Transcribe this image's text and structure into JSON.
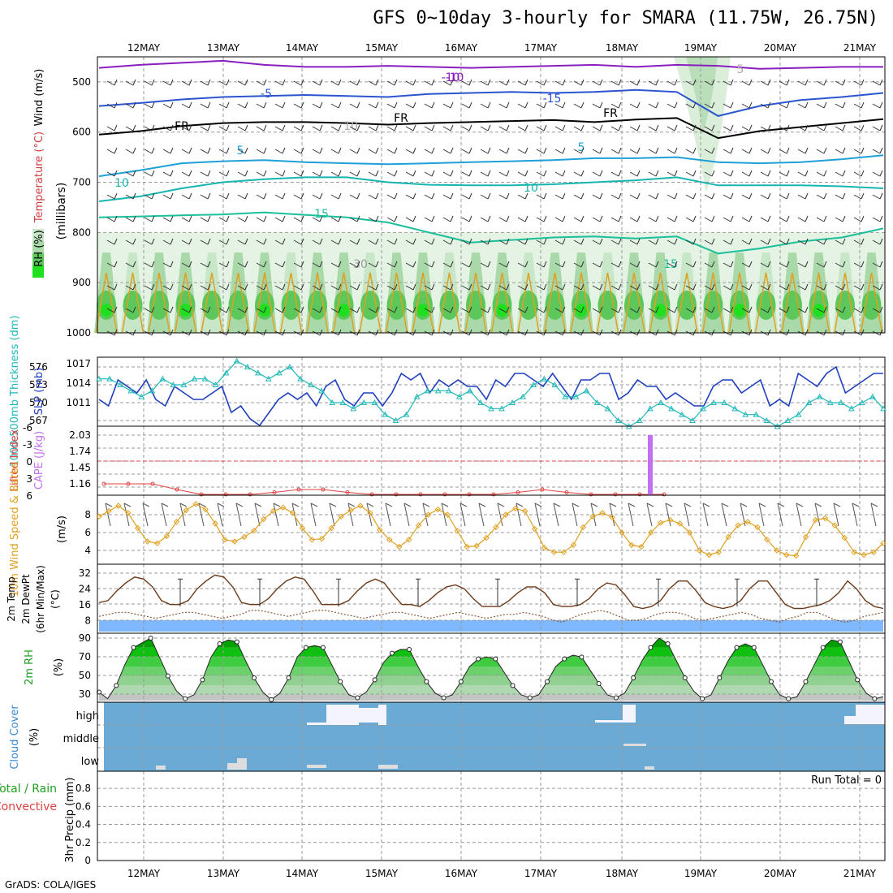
{
  "title": "GFS 0~10day 3-hourly for SMARA (11.75W, 26.75N)",
  "footer": "GrADS: COLA/IGES",
  "chart_data": {
    "type": "meteogram",
    "dates": [
      "12MAY",
      "13MAY",
      "14MAY",
      "15MAY",
      "16MAY",
      "17MAY",
      "18MAY",
      "19MAY",
      "20MAY",
      "21MAY"
    ],
    "panels": [
      {
        "id": "upper-air",
        "ylabels": [
          "Wind (m/s)",
          "Temperature (°C)",
          "RH (%)",
          "(millibars)"
        ],
        "yticks": [
          500,
          600,
          700,
          800,
          900,
          1000
        ],
        "ylim": [
          450,
          1000
        ],
        "contour_labels": [
          "-10",
          "-5",
          "FR",
          "5",
          "10",
          "15",
          "-15",
          "-10",
          "FR",
          "FR",
          "5",
          "10",
          "15",
          "30",
          "10",
          "5"
        ],
        "isotherms": [
          {
            "label": "-10",
            "color": "#8a1fbf",
            "p": [
              472,
              466,
              462,
              458,
              466,
              470,
              470,
              468,
              470,
              472,
              470,
              468,
              466,
              470,
              466,
              468,
              474,
              472,
              470,
              470
            ]
          },
          {
            "label": "-5",
            "color": "#2a54d0",
            "p": [
              548,
              542,
              535,
              530,
              528,
              526,
              528,
              530,
              524,
              522,
              520,
              522,
              520,
              516,
              520,
              568,
              548,
              536,
              530,
              522
            ]
          },
          {
            "label": "FR",
            "color": "#000000",
            "p": [
              605,
              598,
              588,
              582,
              580,
              580,
              582,
              585,
              582,
              580,
              578,
              576,
              580,
              575,
              572,
              612,
              598,
              590,
              582,
              574
            ]
          },
          {
            "label": "5",
            "color": "#1ea0d8",
            "p": [
              688,
              676,
              662,
              658,
              656,
              660,
              662,
              664,
              662,
              660,
              658,
              656,
              652,
              652,
              650,
              660,
              662,
              660,
              654,
              646
            ]
          },
          {
            "label": "10",
            "color": "#17b5b0",
            "p": [
              738,
              728,
              712,
              700,
              694,
              690,
              690,
              700,
              705,
              706,
              706,
              704,
              700,
              696,
              690,
              706,
              706,
              706,
              708,
              712
            ]
          },
          {
            "label": "15",
            "color": "#1bbf9a",
            "p": [
              770,
              768,
              766,
              764,
              760,
              765,
              770,
              780,
              800,
              820,
              815,
              810,
              808,
              812,
              808,
              842,
              832,
              818,
              810,
              792
            ]
          }
        ]
      },
      {
        "id": "slp-thickness",
        "ylabels": [
          "1000-500mb Thickness (dm)",
          "SLP (mb)"
        ],
        "left_ticks": [
          "576",
          "573",
          "570",
          "567"
        ],
        "right_ticks": [
          "1017",
          "1014",
          "1011"
        ],
        "slp": [
          1012,
          1011,
          1015,
          1014,
          1013,
          1015,
          1012,
          1011,
          1014,
          1013,
          1012,
          1012,
          1013,
          1014,
          1010,
          1011,
          1009,
          1008,
          1010,
          1012,
          1013,
          1012,
          1013,
          1011,
          1014,
          1015,
          1012,
          1011,
          1013,
          1013,
          1011,
          1013,
          1016,
          1015,
          1016,
          1013,
          1015,
          1014,
          1015,
          1014,
          1014,
          1012,
          1015,
          1014,
          1016,
          1016,
          1015,
          1014,
          1016,
          1014,
          1012,
          1015,
          1015,
          1016,
          1016,
          1012,
          1013,
          1015,
          1014,
          1014,
          1012,
          1013,
          1012,
          1011,
          1011,
          1014,
          1015,
          1015,
          1013,
          1014,
          1015,
          1011,
          1012,
          1011,
          1016,
          1015,
          1014,
          1016,
          1017,
          1013,
          1014,
          1015,
          1016,
          1016
        ],
        "thickness": [
          574,
          574,
          573,
          572,
          571,
          572,
          574,
          573,
          573,
          574,
          574,
          573,
          575,
          577,
          576,
          575,
          574,
          575,
          576,
          574,
          573,
          572,
          570,
          570,
          569,
          570,
          570,
          568,
          567,
          568,
          571,
          572,
          572,
          572,
          571,
          572,
          570,
          569,
          569,
          570,
          571,
          573,
          574,
          573,
          571,
          571,
          572,
          570,
          569,
          567,
          566,
          567,
          569,
          570,
          569,
          568,
          567,
          569,
          570,
          570,
          569,
          568,
          568,
          567,
          566,
          567,
          568,
          570,
          571,
          570,
          570,
          569,
          570,
          571,
          569
        ]
      },
      {
        "id": "lifted-cape",
        "ylabels": [
          "Lifted Index",
          "CAPE (J/kg)"
        ],
        "li_ticks": [
          "-6",
          "-3",
          "0",
          "3",
          "6"
        ],
        "cape_ticks": [
          "2.03",
          "1.74",
          "1.45",
          "1.16"
        ],
        "lifted_index": [
          4,
          4,
          4,
          5,
          6,
          6,
          6,
          5.5,
          5,
          5,
          5.5,
          6,
          6,
          6,
          6,
          6,
          6,
          5.5,
          5,
          5.5,
          6,
          6,
          6,
          6
        ],
        "cape_bar_value": 2.03
      },
      {
        "id": "wind10m",
        "ylabels": [
          "10m Wind Speed & Barbs",
          "(m/s)"
        ],
        "yticks": [
          "8",
          "6",
          "4"
        ],
        "speed": [
          7.8,
          8.4,
          9.0,
          8.2,
          6.5,
          5.0,
          4.8,
          5.6,
          7.2,
          8.5,
          9.2,
          8.6,
          7.0,
          5.2,
          5.0,
          5.5,
          6.2,
          7.5,
          8.4,
          8.8,
          8.2,
          6.5,
          5.2,
          5.3,
          6.5,
          7.8,
          8.5,
          9.0,
          8.2,
          6.3,
          5.2,
          4.4,
          5.2,
          6.8,
          8.0,
          8.6,
          8.0,
          6.2,
          4.4,
          4.5,
          5.4,
          6.6,
          8.0,
          8.7,
          8.4,
          6.4,
          4.3,
          3.8,
          3.8,
          4.6,
          6.6,
          7.8,
          8.2,
          7.7,
          6.0,
          4.6,
          4.4,
          6.0,
          7.1,
          7.4,
          7.0,
          6.0,
          4.0,
          3.5,
          3.8,
          5.5,
          6.8,
          7.2,
          6.6,
          5.2,
          4.0,
          3.5,
          3.4,
          5.5,
          7.4,
          7.6,
          6.8,
          5.4,
          3.8,
          3.5,
          3.8,
          4.8
        ]
      },
      {
        "id": "temperature",
        "ylabels": [
          "2m Temp",
          "2m DewPt",
          "(6hr Min/Max)",
          "(°C)"
        ],
        "yticks": [
          "32",
          "24",
          "16",
          "8"
        ],
        "temp": [
          17,
          18,
          23,
          27,
          30,
          29,
          25,
          18,
          16,
          16,
          18,
          24,
          28,
          31,
          30,
          25,
          17,
          16,
          16,
          19,
          24,
          28,
          30,
          29,
          23,
          16,
          16,
          16,
          18,
          23,
          27,
          29,
          27,
          21,
          16,
          16,
          15,
          18,
          22,
          25,
          26,
          24,
          19,
          15,
          15,
          15,
          18,
          22,
          25,
          25,
          22,
          16,
          15,
          15,
          16,
          19,
          24,
          27,
          26,
          21,
          15,
          14,
          15,
          18,
          24,
          28,
          28,
          23,
          17,
          15,
          14,
          15,
          18,
          24,
          28,
          28,
          22,
          16,
          14,
          14,
          15,
          16,
          18,
          22,
          28,
          24,
          18,
          15,
          14
        ],
        "dewpoint": [
          10,
          11,
          12,
          12,
          11,
          10,
          9,
          10,
          11,
          12,
          12,
          11,
          10,
          9,
          10,
          11,
          13,
          13,
          12,
          11,
          10,
          11,
          12,
          13,
          13,
          12,
          11,
          10,
          9,
          10,
          11,
          12,
          12,
          11,
          10,
          9,
          10,
          11,
          12,
          11,
          10,
          9,
          10,
          11,
          11,
          12,
          11,
          10,
          8,
          7,
          9,
          11,
          12,
          13,
          12,
          10,
          8,
          8,
          9,
          11,
          12,
          12,
          11,
          9,
          8,
          9,
          10,
          11,
          12,
          11,
          9,
          8,
          7,
          9,
          10,
          12,
          12,
          10,
          8,
          7,
          8,
          10,
          11,
          12
        ]
      },
      {
        "id": "rh2m",
        "ylabels": [
          "2m RH",
          "(%)"
        ],
        "yticks": [
          "90",
          "70",
          "50",
          "30"
        ],
        "rh": [
          33,
          26,
          40,
          62,
          80,
          85,
          90,
          70,
          50,
          34,
          26,
          30,
          46,
          70,
          84,
          88,
          86,
          66,
          48,
          33,
          25,
          32,
          48,
          70,
          80,
          82,
          80,
          62,
          44,
          30,
          27,
          33,
          46,
          64,
          74,
          78,
          78,
          60,
          44,
          32,
          27,
          30,
          44,
          60,
          68,
          70,
          68,
          54,
          40,
          30,
          27,
          30,
          44,
          60,
          68,
          72,
          70,
          56,
          42,
          30,
          27,
          32,
          48,
          66,
          80,
          90,
          84,
          66,
          48,
          34,
          26,
          30,
          48,
          66,
          80,
          84,
          80,
          62,
          44,
          30,
          26,
          28,
          44,
          62,
          80,
          88,
          86,
          66,
          46,
          32,
          26,
          28
        ]
      },
      {
        "id": "cloud",
        "ylabels": [
          "Cloud Cover",
          "(%)"
        ],
        "categories": [
          "high",
          "middle",
          "low"
        ]
      },
      {
        "id": "precip",
        "ylabels": [
          "Total / Rain",
          "Convective",
          "3hr Precip (mm)"
        ],
        "yticks": [
          "0",
          "0.2",
          "0.4",
          "0.6",
          "0.8"
        ],
        "run_total": "Run Total = 0"
      }
    ]
  }
}
